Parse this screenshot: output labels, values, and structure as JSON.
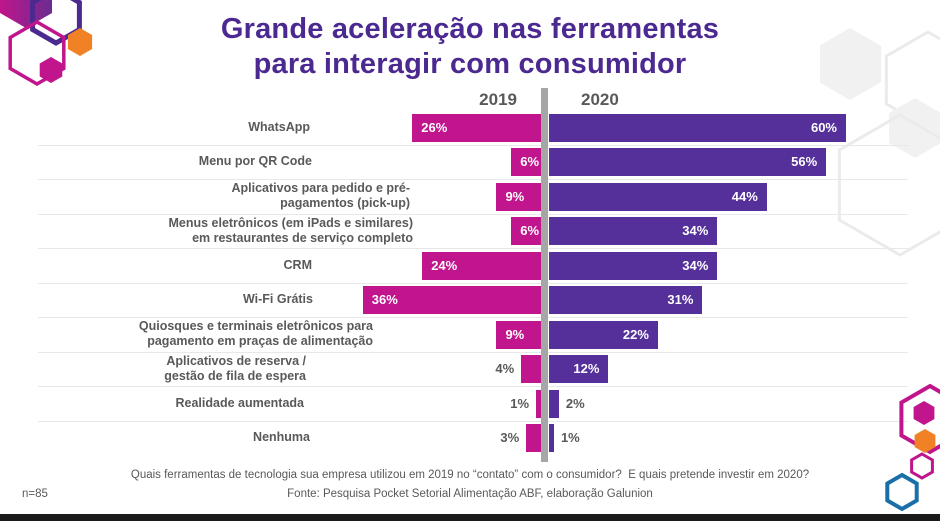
{
  "title": {
    "line1": "Grande aceleração nas ferramentas",
    "line2": "para interagir com consumidor"
  },
  "palette": {
    "magenta": "#C0158C",
    "purple": "#55309B",
    "title_purple": "#4B2991",
    "orange": "#F08124",
    "blue": "#1B6FA8",
    "text_gray": "#595959",
    "divider_gray": "#A6A6A6",
    "separator_gray": "#E8E8E8",
    "hex_light_fill": "#F1F1F1",
    "hex_light_stroke": "#EBEBEB",
    "bottom_bar": "#1A1A1A"
  },
  "chart_data": {
    "type": "bar",
    "orientation": "diverging-horizontal",
    "unit": "%",
    "legend_position": "top-center",
    "grid": false,
    "categories": [
      "WhatsApp",
      "Menu por QR Code",
      "Aplicativos para pedido e pré-\npagamentos (pick-up)",
      "Menus eletrônicos (em iPads e similares)\nem restaurantes de serviço completo",
      "CRM",
      "Wi-Fi Grátis",
      "Quiosques e terminais eletrônicos para\npagamento em praças de alimentação",
      "Aplicativos de reserva /\ngestão de fila de espera",
      "Realidade aumentada",
      "Nenhuma"
    ],
    "series": [
      {
        "name": "2019",
        "color_key": "magenta",
        "values": [
          26,
          6,
          9,
          6,
          24,
          36,
          9,
          4,
          1,
          3
        ]
      },
      {
        "name": "2020",
        "color_key": "purple",
        "values": [
          60,
          56,
          44,
          34,
          34,
          31,
          22,
          12,
          2,
          1
        ]
      }
    ]
  },
  "footer": {
    "question": "Quais ferramentas de tecnologia sua empresa utilizou em 2019 no “contato” com o consumidor?  E quais pretende investir em 2020?",
    "source": "Fonte: Pesquisa Pocket Setorial Alimentação ABF, elaboração Galunion",
    "sample_size": "n=85"
  }
}
